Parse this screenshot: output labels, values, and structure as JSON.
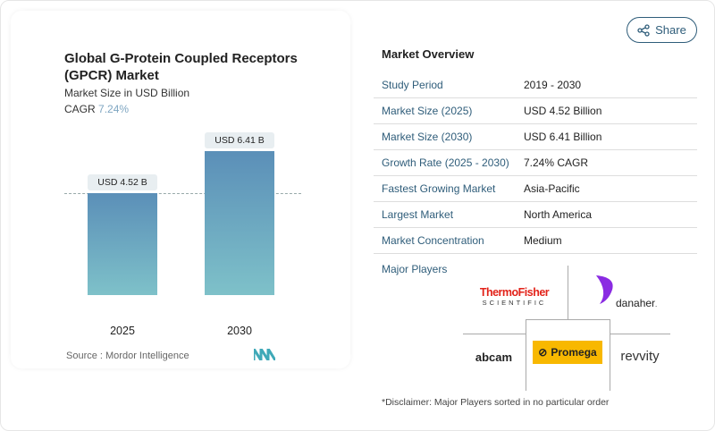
{
  "chart_data": {
    "type": "bar",
    "title": "Global G-Protein Coupled Receptors (GPCR) Market",
    "subtitle": "Market Size in USD Billion",
    "cagr_label": "CAGR",
    "cagr_value": "7.24%",
    "categories": [
      "2025",
      "2030"
    ],
    "values": [
      4.52,
      6.41
    ],
    "data_labels": [
      "USD 4.52 B",
      "USD 6.41 B"
    ],
    "source": "Source :  Mordor Intelligence",
    "colors": {
      "bar_top": "#5b8fb8",
      "bar_bottom": "#7ec1c9"
    }
  },
  "share": {
    "label": "Share",
    "icon": "share-icon"
  },
  "overview": {
    "title": "Market Overview",
    "rows": [
      {
        "k": "Study Period",
        "v": "2019 - 2030"
      },
      {
        "k": "Market Size (2025)",
        "v": "USD 4.52 Billion"
      },
      {
        "k": "Market Size (2030)",
        "v": "USD 6.41 Billion"
      },
      {
        "k": "Growth Rate (2025 - 2030)",
        "v": "7.24% CAGR"
      },
      {
        "k": "Fastest Growing Market",
        "v": "Asia-Pacific"
      },
      {
        "k": "Largest Market",
        "v": "North America"
      },
      {
        "k": "Market Concentration",
        "v": "Medium"
      }
    ]
  },
  "players": {
    "title": "Major Players",
    "logos": [
      "ThermoFisher SCIENTIFIC",
      "danaher",
      "abcam",
      "Promega",
      "revvity"
    ]
  },
  "disclaimer": "*Disclaimer: Major Players sorted in no particular order"
}
